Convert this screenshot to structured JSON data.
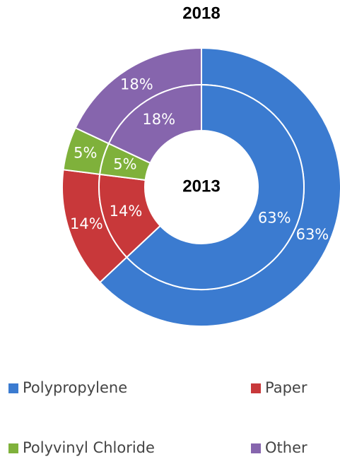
{
  "chart_data": {
    "type": "doughnut",
    "categories": [
      "Polypropylene",
      "Paper",
      "Polyvinyl Chloride",
      "Other"
    ],
    "colors": [
      "#3b7bd0",
      "#c8383a",
      "#7fb13b",
      "#8665ad"
    ],
    "series": [
      {
        "name": "2018",
        "values": [
          63,
          14,
          5,
          18
        ],
        "value_labels": [
          "63%",
          "14%",
          "5%",
          "18%"
        ]
      },
      {
        "name": "2013",
        "values": [
          63,
          14,
          5,
          18
        ],
        "value_labels": [
          "63%",
          "14%",
          "5%",
          "18%"
        ]
      }
    ],
    "legend": "bottom"
  }
}
